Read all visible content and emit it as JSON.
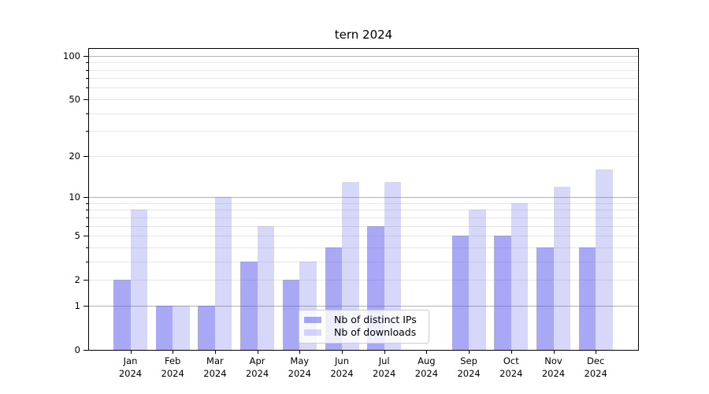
{
  "chart_data": {
    "type": "bar",
    "title": "tern 2024",
    "categories": [
      "Jan\n2024",
      "Feb\n2024",
      "Mar\n2024",
      "Apr\n2024",
      "May\n2024",
      "Jun\n2024",
      "Jul\n2024",
      "Aug\n2024",
      "Sep\n2024",
      "Oct\n2024",
      "Nov\n2024",
      "Dec\n2024"
    ],
    "series": [
      {
        "name": "Nb of distinct IPs",
        "color": "rgba(88,88,236,0.52)",
        "values": [
          2,
          1,
          1,
          3,
          2,
          4,
          6,
          0,
          5,
          5,
          4,
          4
        ]
      },
      {
        "name": "Nb of downloads",
        "color": "rgba(88,88,236,0.24)",
        "values": [
          8,
          1,
          10,
          6,
          3,
          13,
          13,
          0,
          8,
          9,
          12,
          16
        ]
      }
    ],
    "xlabel": "",
    "ylabel": "",
    "yscale": "log1p",
    "ylim": [
      0,
      112
    ],
    "ytick_values": [
      0,
      1,
      2,
      5,
      10,
      20,
      50,
      100
    ],
    "ytick_labels": [
      "0",
      "1",
      "2",
      "5",
      "10",
      "20",
      "50",
      "100"
    ],
    "major_gridlines": [
      1,
      10,
      100
    ],
    "minor_gridlines": [
      2,
      3,
      4,
      5,
      6,
      7,
      8,
      9,
      20,
      30,
      40,
      50,
      60,
      70,
      80,
      90
    ],
    "grid": true,
    "legend_position": "lower center"
  },
  "colors": {
    "major_grid": "#b3b3b3",
    "minor_grid": "#e7e7e7",
    "axis": "#000000",
    "legend_border": "#cccccc",
    "background": "#ffffff"
  }
}
